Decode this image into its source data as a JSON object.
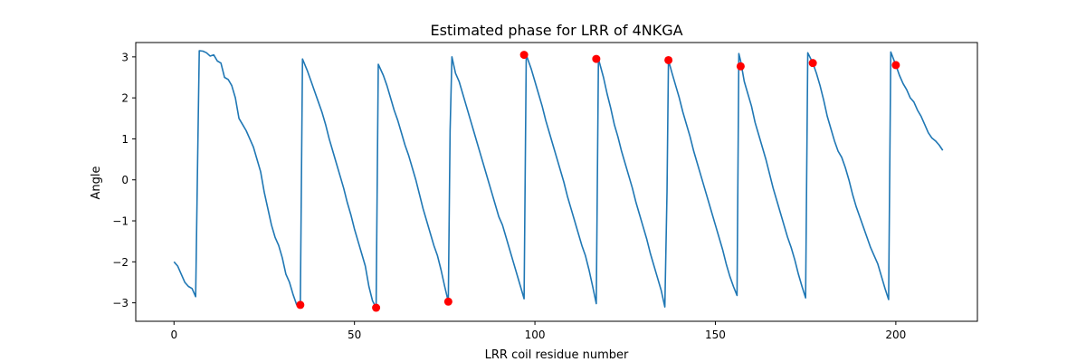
{
  "chart_data": {
    "type": "line",
    "title": "Estimated phase for LRR of 4NKGA",
    "xlabel": "LRR coil residue number",
    "ylabel": "Angle",
    "xlim": [
      -10.6,
      222.6
    ],
    "ylim": [
      -3.45,
      3.35
    ],
    "xticks": [
      0,
      50,
      100,
      150,
      200
    ],
    "yticks": [
      -3,
      -2,
      -1,
      0,
      1,
      2,
      3
    ],
    "grid": false,
    "series": [
      {
        "color": "#1f77b4",
        "points": [
          [
            0,
            -2.0
          ],
          [
            1,
            -2.1
          ],
          [
            2,
            -2.3
          ],
          [
            3,
            -2.5
          ],
          [
            4,
            -2.6
          ],
          [
            5,
            -2.65
          ],
          [
            6,
            -2.85
          ],
          [
            6.5,
            0.2
          ],
          [
            7,
            3.15
          ],
          [
            8,
            3.14
          ],
          [
            9,
            3.1
          ],
          [
            10,
            3.02
          ],
          [
            11,
            3.05
          ],
          [
            12,
            2.9
          ],
          [
            13,
            2.85
          ],
          [
            14,
            2.5
          ],
          [
            15,
            2.45
          ],
          [
            16,
            2.3
          ],
          [
            17,
            2.0
          ],
          [
            18,
            1.5
          ],
          [
            19,
            1.35
          ],
          [
            20,
            1.2
          ],
          [
            21,
            1.0
          ],
          [
            22,
            0.8
          ],
          [
            23,
            0.5
          ],
          [
            24,
            0.2
          ],
          [
            25,
            -0.3
          ],
          [
            26,
            -0.7
          ],
          [
            27,
            -1.1
          ],
          [
            28,
            -1.4
          ],
          [
            29,
            -1.6
          ],
          [
            30,
            -1.9
          ],
          [
            31,
            -2.3
          ],
          [
            32,
            -2.5
          ],
          [
            33,
            -2.8
          ],
          [
            34,
            -3.05
          ],
          [
            35,
            -3.05
          ],
          [
            35.6,
            2.95
          ],
          [
            37,
            2.65
          ],
          [
            38,
            2.4
          ],
          [
            39,
            2.15
          ],
          [
            40,
            1.9
          ],
          [
            41,
            1.65
          ],
          [
            42,
            1.35
          ],
          [
            43,
            1.0
          ],
          [
            44,
            0.7
          ],
          [
            45,
            0.4
          ],
          [
            46,
            0.1
          ],
          [
            47,
            -0.2
          ],
          [
            48,
            -0.55
          ],
          [
            49,
            -0.85
          ],
          [
            50,
            -1.2
          ],
          [
            51,
            -1.5
          ],
          [
            52,
            -1.8
          ],
          [
            53,
            -2.1
          ],
          [
            54,
            -2.6
          ],
          [
            55,
            -2.95
          ],
          [
            56,
            -3.12
          ],
          [
            56.6,
            2.82
          ],
          [
            58,
            2.55
          ],
          [
            59,
            2.3
          ],
          [
            60,
            2.0
          ],
          [
            61,
            1.7
          ],
          [
            62,
            1.45
          ],
          [
            63,
            1.15
          ],
          [
            64,
            0.85
          ],
          [
            65,
            0.6
          ],
          [
            66,
            0.3
          ],
          [
            67,
            0.0
          ],
          [
            68,
            -0.35
          ],
          [
            69,
            -0.7
          ],
          [
            70,
            -1.0
          ],
          [
            71,
            -1.3
          ],
          [
            72,
            -1.6
          ],
          [
            73,
            -1.85
          ],
          [
            74,
            -2.2
          ],
          [
            75,
            -2.6
          ],
          [
            76,
            -2.97
          ],
          [
            76.5,
            1.2
          ],
          [
            77,
            3.0
          ],
          [
            78,
            2.6
          ],
          [
            79,
            2.4
          ],
          [
            80,
            2.1
          ],
          [
            81,
            1.8
          ],
          [
            82,
            1.5
          ],
          [
            83,
            1.2
          ],
          [
            84,
            0.9
          ],
          [
            85,
            0.6
          ],
          [
            86,
            0.3
          ],
          [
            87,
            0.0
          ],
          [
            88,
            -0.3
          ],
          [
            89,
            -0.6
          ],
          [
            90,
            -0.9
          ],
          [
            91,
            -1.1
          ],
          [
            92,
            -1.4
          ],
          [
            93,
            -1.7
          ],
          [
            94,
            -2.0
          ],
          [
            95,
            -2.3
          ],
          [
            96,
            -2.6
          ],
          [
            97,
            -2.9
          ],
          [
            97.6,
            3.05
          ],
          [
            99,
            2.7
          ],
          [
            100,
            2.4
          ],
          [
            101,
            2.1
          ],
          [
            102,
            1.8
          ],
          [
            103,
            1.45
          ],
          [
            104,
            1.15
          ],
          [
            105,
            0.85
          ],
          [
            106,
            0.55
          ],
          [
            107,
            0.25
          ],
          [
            108,
            -0.05
          ],
          [
            109,
            -0.4
          ],
          [
            110,
            -0.7
          ],
          [
            111,
            -1.0
          ],
          [
            112,
            -1.3
          ],
          [
            113,
            -1.6
          ],
          [
            114,
            -1.85
          ],
          [
            115,
            -2.2
          ],
          [
            116,
            -2.6
          ],
          [
            117,
            -3.02
          ],
          [
            117.6,
            2.95
          ],
          [
            119,
            2.5
          ],
          [
            120,
            2.1
          ],
          [
            121,
            1.75
          ],
          [
            122,
            1.35
          ],
          [
            123,
            1.05
          ],
          [
            124,
            0.7
          ],
          [
            125,
            0.4
          ],
          [
            126,
            0.1
          ],
          [
            127,
            -0.2
          ],
          [
            128,
            -0.55
          ],
          [
            129,
            -0.85
          ],
          [
            130,
            -1.15
          ],
          [
            131,
            -1.45
          ],
          [
            132,
            -1.8
          ],
          [
            133,
            -2.1
          ],
          [
            134,
            -2.4
          ],
          [
            135,
            -2.7
          ],
          [
            136,
            -3.1
          ],
          [
            136.6,
            -0.3
          ],
          [
            137,
            2.92
          ],
          [
            138,
            2.6
          ],
          [
            139,
            2.3
          ],
          [
            140,
            2.0
          ],
          [
            141,
            1.65
          ],
          [
            142,
            1.35
          ],
          [
            143,
            1.05
          ],
          [
            144,
            0.7
          ],
          [
            145,
            0.4
          ],
          [
            146,
            0.1
          ],
          [
            147,
            -0.2
          ],
          [
            148,
            -0.5
          ],
          [
            149,
            -0.8
          ],
          [
            150,
            -1.1
          ],
          [
            151,
            -1.4
          ],
          [
            152,
            -1.7
          ],
          [
            153,
            -2.05
          ],
          [
            154,
            -2.35
          ],
          [
            155,
            -2.6
          ],
          [
            156,
            -2.82
          ],
          [
            156.5,
            3.08
          ],
          [
            157,
            2.9
          ],
          [
            158,
            2.4
          ],
          [
            159,
            2.1
          ],
          [
            160,
            1.8
          ],
          [
            161,
            1.4
          ],
          [
            162,
            1.1
          ],
          [
            163,
            0.8
          ],
          [
            164,
            0.5
          ],
          [
            165,
            0.15
          ],
          [
            166,
            -0.2
          ],
          [
            167,
            -0.5
          ],
          [
            168,
            -0.8
          ],
          [
            169,
            -1.1
          ],
          [
            170,
            -1.4
          ],
          [
            171,
            -1.65
          ],
          [
            172,
            -1.95
          ],
          [
            173,
            -2.3
          ],
          [
            174,
            -2.6
          ],
          [
            175,
            -2.88
          ],
          [
            175.6,
            3.1
          ],
          [
            177,
            2.85
          ],
          [
            178,
            2.6
          ],
          [
            179,
            2.3
          ],
          [
            180,
            1.95
          ],
          [
            181,
            1.55
          ],
          [
            182,
            1.25
          ],
          [
            183,
            0.95
          ],
          [
            184,
            0.7
          ],
          [
            185,
            0.55
          ],
          [
            186,
            0.3
          ],
          [
            187,
            0.0
          ],
          [
            188,
            -0.35
          ],
          [
            189,
            -0.65
          ],
          [
            190,
            -0.9
          ],
          [
            191,
            -1.15
          ],
          [
            192,
            -1.4
          ],
          [
            193,
            -1.65
          ],
          [
            194,
            -1.85
          ],
          [
            195,
            -2.05
          ],
          [
            196,
            -2.35
          ],
          [
            197,
            -2.65
          ],
          [
            198,
            -2.92
          ],
          [
            198.6,
            3.12
          ],
          [
            200,
            2.8
          ],
          [
            201,
            2.55
          ],
          [
            202,
            2.35
          ],
          [
            203,
            2.2
          ],
          [
            204,
            2.0
          ],
          [
            205,
            1.9
          ],
          [
            206,
            1.7
          ],
          [
            207,
            1.55
          ],
          [
            208,
            1.35
          ],
          [
            209,
            1.15
          ],
          [
            210,
            1.02
          ],
          [
            211,
            0.95
          ],
          [
            212,
            0.85
          ],
          [
            213,
            0.72
          ]
        ]
      }
    ],
    "markers": {
      "color": "#ff0000",
      "points": [
        [
          35,
          -3.05
        ],
        [
          56,
          -3.12
        ],
        [
          76,
          -2.97
        ],
        [
          97,
          3.05
        ],
        [
          117,
          2.95
        ],
        [
          137,
          2.92
        ],
        [
          157,
          2.77
        ],
        [
          177,
          2.85
        ],
        [
          200,
          2.8
        ]
      ]
    }
  }
}
